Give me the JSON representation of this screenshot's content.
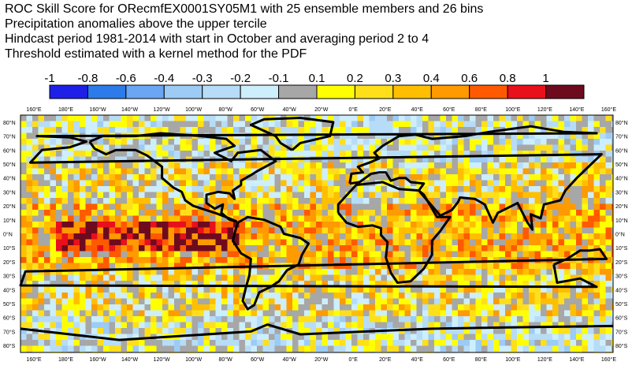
{
  "title": {
    "line1": "ROC Skill Score for ORecmfEX0001SY05M1 with 25 ensemble members and 26 bins",
    "line2": "Precipitation anomalies above the upper tercile",
    "line3": "Hindcast period 1981-2014 with start in October and averaging period  2 to  4",
    "line4": "Threshold estimated with a kernel method for the PDF"
  },
  "colorbar": {
    "tick_labels": [
      "-1",
      "-0.8",
      "-0.6",
      "-0.4",
      "-0.3",
      "-0.2",
      "-0.1",
      "0.1",
      "0.2",
      "0.3",
      "0.4",
      "0.6",
      "0.8",
      "1"
    ],
    "colors": [
      "#1e20e8",
      "#2d7bea",
      "#6aa6f3",
      "#9ccbf6",
      "#b7dcf7",
      "#cdeefb",
      "#a7a7a7",
      "#ffff00",
      "#ffdf1a",
      "#ffbf00",
      "#ff9a00",
      "#ff5a00",
      "#e8101a",
      "#6e0a1e"
    ]
  },
  "map": {
    "lon_labels": [
      "160°E",
      "180°E",
      "160°W",
      "140°W",
      "120°W",
      "100°W",
      "80°W",
      "60°W",
      "40°W",
      "20°W",
      "0°E",
      "20°E",
      "40°E",
      "60°E",
      "80°E",
      "100°E",
      "120°E",
      "140°E",
      "160°E"
    ],
    "lat_labels": [
      "80°N",
      "70°N",
      "60°N",
      "50°N",
      "40°N",
      "30°N",
      "20°N",
      "10°N",
      "0°N",
      "10°S",
      "20°S",
      "30°S",
      "40°S",
      "50°S",
      "60°S",
      "70°S",
      "80°S"
    ],
    "ocean_color": "#a9a9a9"
  }
}
